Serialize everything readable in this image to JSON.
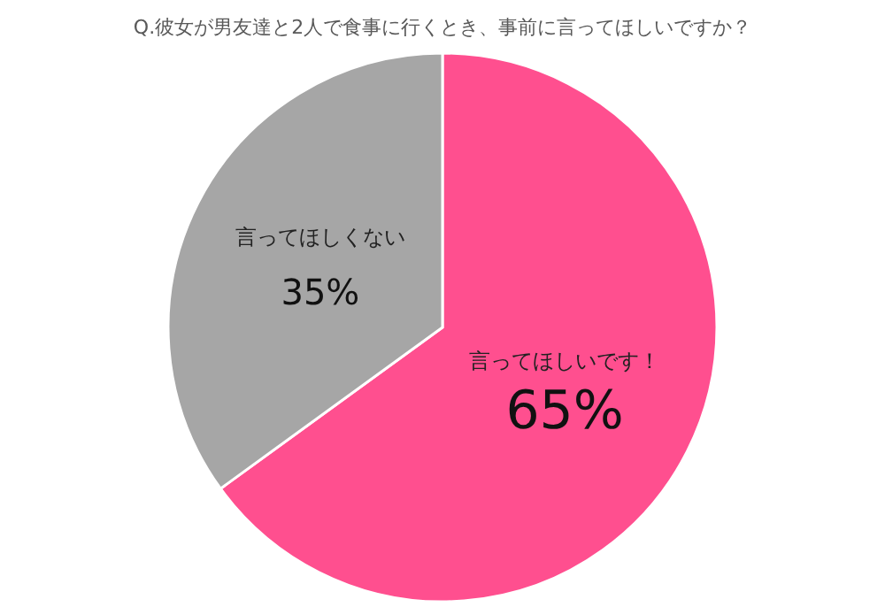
{
  "chart_data": {
    "type": "pie",
    "title": "Q.彼女が男友達と2人で食事に行くとき、事前に言ってほしいですか？",
    "categories": [
      "言ってほしいです！",
      "言ってほしくない"
    ],
    "values": [
      65,
      35
    ],
    "value_labels": [
      "65%",
      "35%"
    ],
    "colors": [
      "#ff4f8f",
      "#a6a6a6"
    ]
  }
}
